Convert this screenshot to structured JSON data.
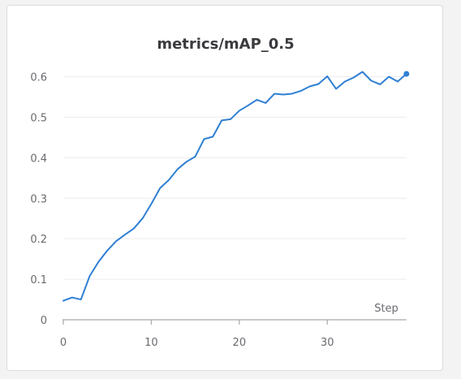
{
  "chart_data": {
    "type": "line",
    "title": "metrics/mAP_0.5",
    "xlabel": "Step",
    "ylabel": "",
    "xlim": [
      0,
      39
    ],
    "ylim": [
      0,
      0.63
    ],
    "xticks": [
      0,
      10,
      20,
      30
    ],
    "yticks": [
      0,
      0.1,
      0.2,
      0.3,
      0.4,
      0.5,
      0.6
    ],
    "x_tick_labels": [
      "0",
      "10",
      "20",
      "30"
    ],
    "y_tick_labels": [
      "0",
      "0.1",
      "0.2",
      "0.3",
      "0.4",
      "0.5",
      "0.6"
    ],
    "grid": true,
    "line_color": "#2f7fd4",
    "series": [
      {
        "x": [
          0,
          1,
          2,
          3,
          4,
          5,
          6,
          7,
          8,
          9,
          10,
          11,
          12,
          13,
          14,
          15,
          16,
          17,
          18,
          19,
          20,
          21,
          22,
          23,
          24,
          25,
          26,
          27,
          28,
          29,
          30,
          31,
          32,
          33,
          34,
          35,
          36,
          37,
          38,
          39
        ],
        "values": [
          0.047,
          0.055,
          0.05,
          0.108,
          0.143,
          0.171,
          0.194,
          0.21,
          0.225,
          0.25,
          0.286,
          0.325,
          0.345,
          0.372,
          0.39,
          0.403,
          0.446,
          0.452,
          0.492,
          0.495,
          0.516,
          0.529,
          0.543,
          0.535,
          0.558,
          0.556,
          0.558,
          0.565,
          0.576,
          0.582,
          0.601,
          0.57,
          0.588,
          0.598,
          0.612,
          0.59,
          0.581,
          0.6,
          0.588,
          0.607
        ]
      }
    ]
  }
}
